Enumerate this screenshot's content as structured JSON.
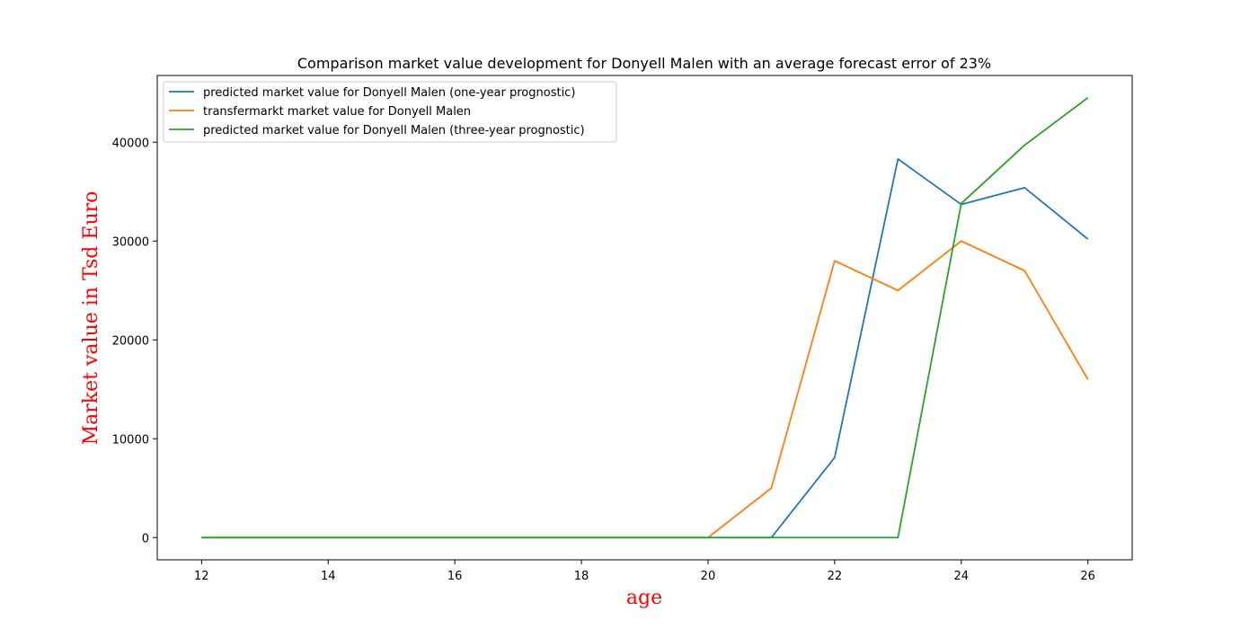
{
  "chart_data": {
    "type": "line",
    "title": "Comparison market value development for Donyell Malen with an average forecast error of 23%",
    "xlabel": "age",
    "ylabel": "Market value in Tsd Euro",
    "label_color": "#ff0000",
    "xlim": [
      11.3,
      26.7
    ],
    "ylim": [
      -2250,
      46750
    ],
    "xticks": [
      "12",
      "14",
      "16",
      "18",
      "20",
      "22",
      "24",
      "26"
    ],
    "yticks": [
      "0",
      "10000",
      "20000",
      "30000",
      "40000"
    ],
    "grid": false,
    "legend_position": "top-left",
    "x": [
      12,
      13,
      14,
      15,
      16,
      17,
      18,
      19,
      20,
      21,
      22,
      23,
      24,
      25,
      26
    ],
    "series": [
      {
        "name": "predicted market value for Donyell Malen (one-year prognostic)",
        "color": "#1f77b4",
        "values": [
          0,
          0,
          0,
          0,
          0,
          0,
          0,
          0,
          0,
          0,
          8100,
          38300,
          33700,
          35400,
          30200
        ]
      },
      {
        "name": "transfermarkt market value for Donyell Malen",
        "color": "#ff7f0e",
        "values": [
          0,
          0,
          0,
          0,
          0,
          0,
          0,
          0,
          0,
          5000,
          28000,
          25000,
          30000,
          27000,
          16000
        ]
      },
      {
        "name": "predicted market value for Donyell Malen (three-year prognostic)",
        "color": "#2ca02c",
        "values": [
          0,
          0,
          0,
          0,
          0,
          0,
          0,
          0,
          0,
          0,
          0,
          0,
          33800,
          39700,
          44500
        ]
      }
    ]
  }
}
